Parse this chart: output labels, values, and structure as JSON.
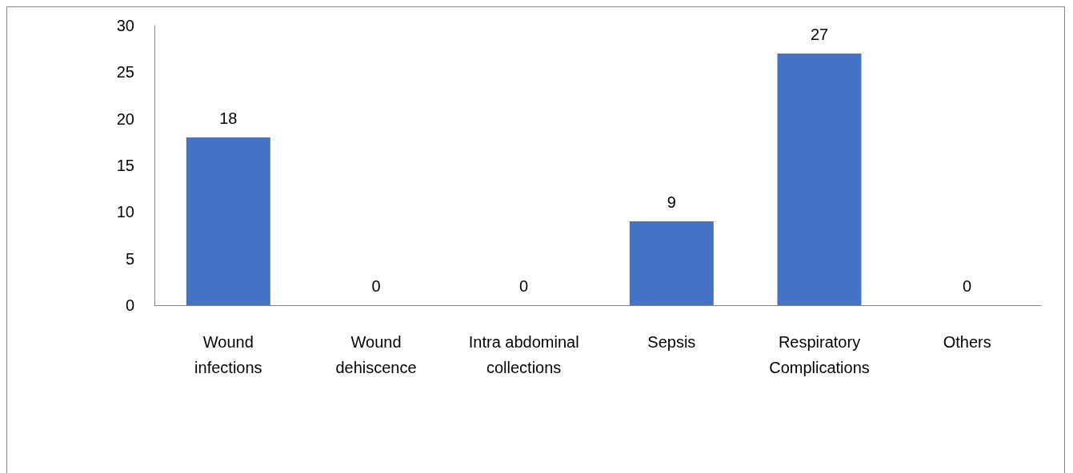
{
  "chart_data": {
    "type": "bar",
    "categories": [
      "Wound\ninfections",
      "Wound\ndehiscence",
      "Intra abdominal\ncollections",
      "Sepsis",
      "Respiratory\nComplications",
      "Others"
    ],
    "values": [
      18,
      0,
      0,
      9,
      27,
      0
    ],
    "color": "#4472c4",
    "ylim": [
      0,
      30
    ],
    "yticks": [
      0,
      5,
      10,
      15,
      20,
      25,
      30
    ],
    "grid": false,
    "data_labels": true
  }
}
